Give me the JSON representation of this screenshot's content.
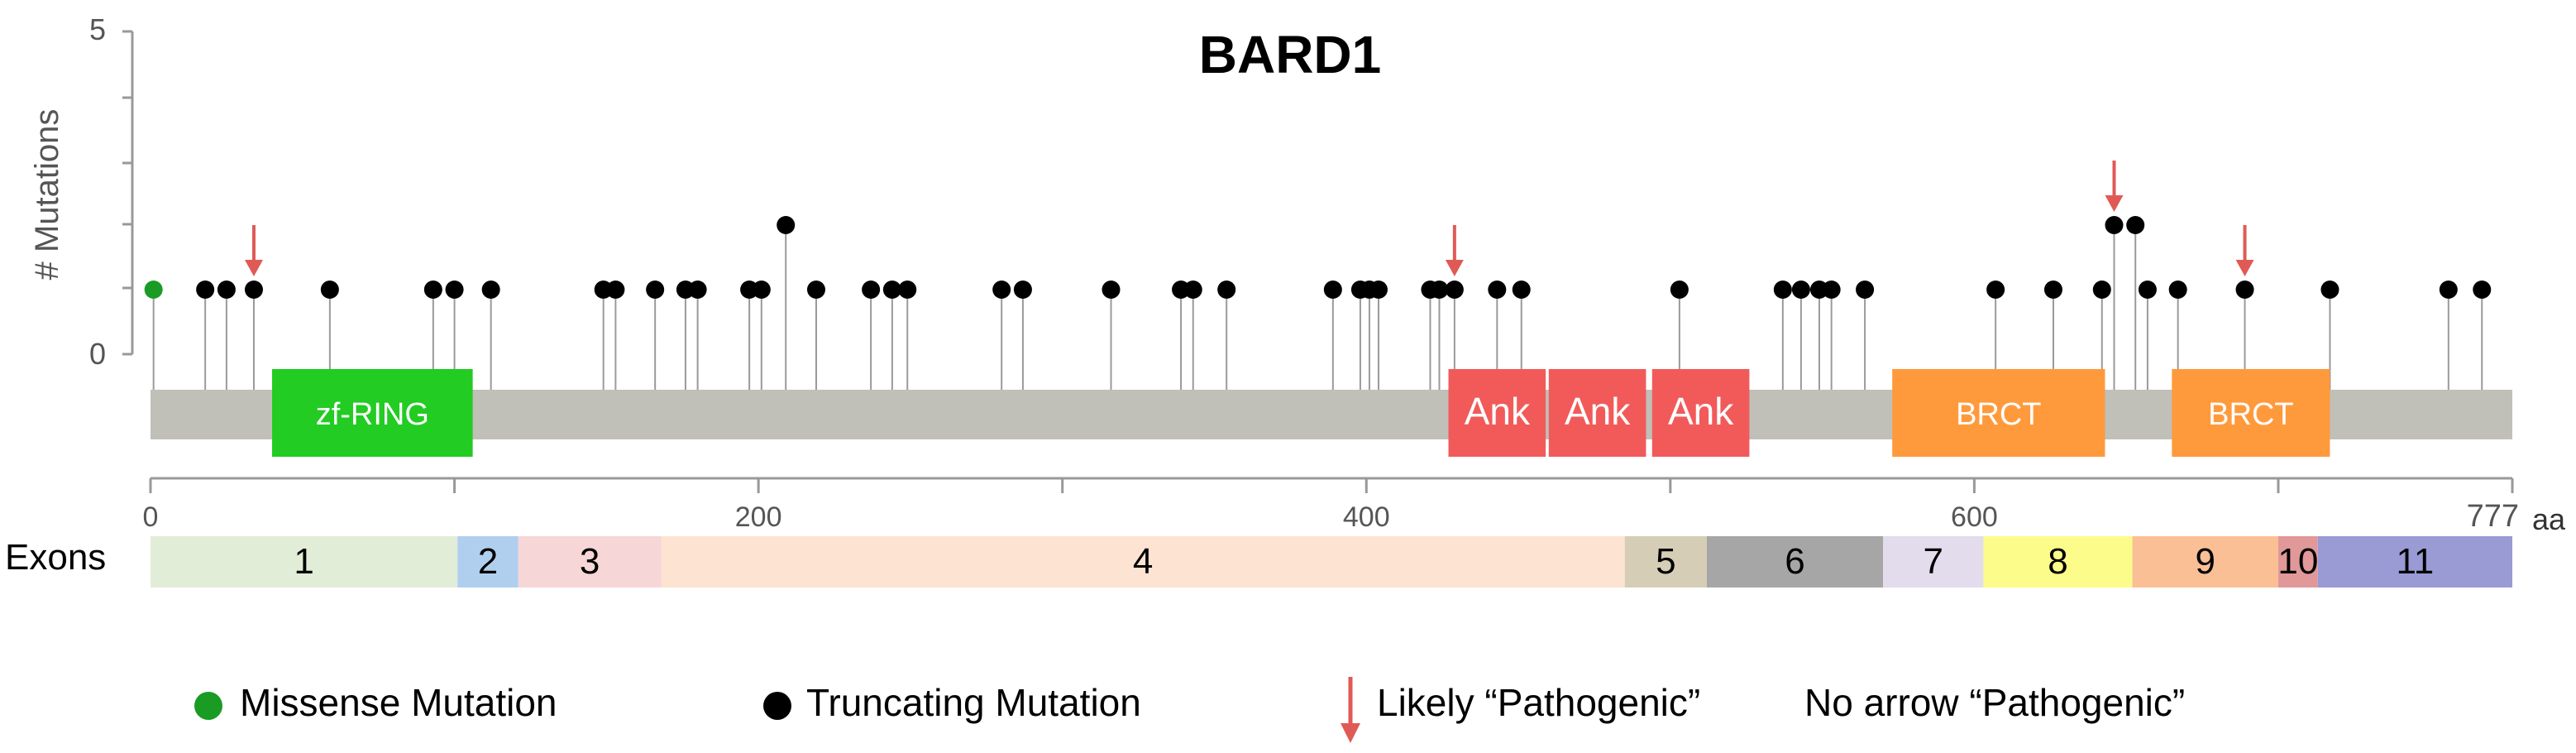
{
  "chart_data": {
    "type": "lollipop",
    "title": "BARD1",
    "ylabel": "# Mutations",
    "y_ticks": [
      "0",
      "5"
    ],
    "ylim": [
      0,
      5
    ],
    "x_range": [
      0,
      777
    ],
    "x_unit": "aa",
    "x_tick_labels": [
      {
        "value": 0,
        "label": "0"
      },
      {
        "value": 200,
        "label": "200"
      },
      {
        "value": 400,
        "label": "400"
      },
      {
        "value": 600,
        "label": "600"
      },
      {
        "value": 777,
        "label": "777"
      }
    ],
    "x_minor_ticks": [
      100,
      300,
      500,
      700
    ],
    "domains": [
      {
        "name": "zf-RING",
        "start": 40,
        "end": 106,
        "color": "#22cc22"
      },
      {
        "name": "Ank",
        "start": 427,
        "end": 459,
        "color": "#f25a5a"
      },
      {
        "name": "Ank",
        "start": 460,
        "end": 492,
        "color": "#f25a5a"
      },
      {
        "name": "Ank",
        "start": 494,
        "end": 526,
        "color": "#f25a5a"
      },
      {
        "name": "BRCT",
        "start": 573,
        "end": 643,
        "color": "#ff9a3c"
      },
      {
        "name": "BRCT",
        "start": 665,
        "end": 717,
        "color": "#ff9a3c"
      }
    ],
    "exons_label": "Exons",
    "exons": [
      {
        "name": "1",
        "start": 0,
        "end": 101,
        "color": "#e2edd8"
      },
      {
        "name": "2",
        "start": 101,
        "end": 121,
        "color": "#b0cfee"
      },
      {
        "name": "3",
        "start": 121,
        "end": 168,
        "color": "#f7d6d8"
      },
      {
        "name": "4",
        "start": 168,
        "end": 485,
        "color": "#fde3d2"
      },
      {
        "name": "5",
        "start": 485,
        "end": 512,
        "color": "#d6cdb6"
      },
      {
        "name": "6",
        "start": 512,
        "end": 570,
        "color": "#a6a6a6"
      },
      {
        "name": "7",
        "start": 570,
        "end": 603,
        "color": "#e2dcec"
      },
      {
        "name": "8",
        "start": 603,
        "end": 652,
        "color": "#fcfc8a"
      },
      {
        "name": "9",
        "start": 652,
        "end": 700,
        "color": "#fbbf95"
      },
      {
        "name": "10",
        "start": 700,
        "end": 713,
        "color": "#e09898"
      },
      {
        "name": "11",
        "start": 713,
        "end": 777,
        "color": "#9a9ad4"
      }
    ],
    "mutations": [
      {
        "pos": 1,
        "count": 1,
        "type": "missense"
      },
      {
        "pos": 18,
        "count": 1,
        "type": "truncating"
      },
      {
        "pos": 25,
        "count": 1,
        "type": "truncating"
      },
      {
        "pos": 34,
        "count": 1,
        "type": "truncating",
        "arrow": true
      },
      {
        "pos": 59,
        "count": 1,
        "type": "truncating"
      },
      {
        "pos": 93,
        "count": 1,
        "type": "truncating"
      },
      {
        "pos": 100,
        "count": 1,
        "type": "truncating"
      },
      {
        "pos": 112,
        "count": 1,
        "type": "truncating"
      },
      {
        "pos": 149,
        "count": 1,
        "type": "truncating"
      },
      {
        "pos": 153,
        "count": 1,
        "type": "truncating"
      },
      {
        "pos": 166,
        "count": 1,
        "type": "truncating"
      },
      {
        "pos": 176,
        "count": 1,
        "type": "truncating"
      },
      {
        "pos": 180,
        "count": 1,
        "type": "truncating"
      },
      {
        "pos": 197,
        "count": 1,
        "type": "truncating"
      },
      {
        "pos": 201,
        "count": 1,
        "type": "truncating"
      },
      {
        "pos": 209,
        "count": 2,
        "type": "truncating"
      },
      {
        "pos": 219,
        "count": 1,
        "type": "truncating"
      },
      {
        "pos": 237,
        "count": 1,
        "type": "truncating"
      },
      {
        "pos": 244,
        "count": 1,
        "type": "truncating"
      },
      {
        "pos": 249,
        "count": 1,
        "type": "truncating"
      },
      {
        "pos": 280,
        "count": 1,
        "type": "truncating"
      },
      {
        "pos": 287,
        "count": 1,
        "type": "truncating"
      },
      {
        "pos": 316,
        "count": 1,
        "type": "truncating"
      },
      {
        "pos": 339,
        "count": 1,
        "type": "truncating"
      },
      {
        "pos": 343,
        "count": 1,
        "type": "truncating"
      },
      {
        "pos": 354,
        "count": 1,
        "type": "truncating"
      },
      {
        "pos": 389,
        "count": 1,
        "type": "truncating"
      },
      {
        "pos": 398,
        "count": 1,
        "type": "truncating"
      },
      {
        "pos": 401,
        "count": 1,
        "type": "truncating"
      },
      {
        "pos": 404,
        "count": 1,
        "type": "truncating"
      },
      {
        "pos": 421,
        "count": 1,
        "type": "truncating"
      },
      {
        "pos": 424,
        "count": 1,
        "type": "truncating"
      },
      {
        "pos": 429,
        "count": 1,
        "type": "truncating",
        "arrow": true
      },
      {
        "pos": 443,
        "count": 1,
        "type": "truncating"
      },
      {
        "pos": 451,
        "count": 1,
        "type": "truncating"
      },
      {
        "pos": 503,
        "count": 1,
        "type": "truncating"
      },
      {
        "pos": 537,
        "count": 1,
        "type": "truncating"
      },
      {
        "pos": 543,
        "count": 1,
        "type": "truncating"
      },
      {
        "pos": 549,
        "count": 1,
        "type": "truncating"
      },
      {
        "pos": 553,
        "count": 1,
        "type": "truncating"
      },
      {
        "pos": 564,
        "count": 1,
        "type": "truncating"
      },
      {
        "pos": 607,
        "count": 1,
        "type": "truncating"
      },
      {
        "pos": 626,
        "count": 1,
        "type": "truncating"
      },
      {
        "pos": 642,
        "count": 1,
        "type": "truncating"
      },
      {
        "pos": 646,
        "count": 2,
        "type": "truncating",
        "arrow": true
      },
      {
        "pos": 653,
        "count": 2,
        "type": "truncating"
      },
      {
        "pos": 657,
        "count": 1,
        "type": "truncating"
      },
      {
        "pos": 667,
        "count": 1,
        "type": "truncating"
      },
      {
        "pos": 689,
        "count": 1,
        "type": "truncating",
        "arrow": true
      },
      {
        "pos": 717,
        "count": 1,
        "type": "truncating"
      },
      {
        "pos": 756,
        "count": 1,
        "type": "truncating"
      },
      {
        "pos": 767,
        "count": 1,
        "type": "truncating"
      }
    ],
    "legend": [
      {
        "label": "Missense Mutation",
        "marker": "green-dot"
      },
      {
        "label": "Truncating Mutation",
        "marker": "black-dot"
      },
      {
        "label": "Likely “Pathogenic”",
        "marker": "red-arrow"
      },
      {
        "label": "No arrow “Pathogenic”",
        "marker": "none"
      }
    ],
    "colors": {
      "missense": "#1a9b24",
      "truncating": "#000000",
      "arrow": "#e05a55",
      "protein_bar": "#c0c0b8",
      "stem": "#9a9a9a",
      "axis": "#999999"
    },
    "grid": false,
    "legend_position": "bottom"
  }
}
